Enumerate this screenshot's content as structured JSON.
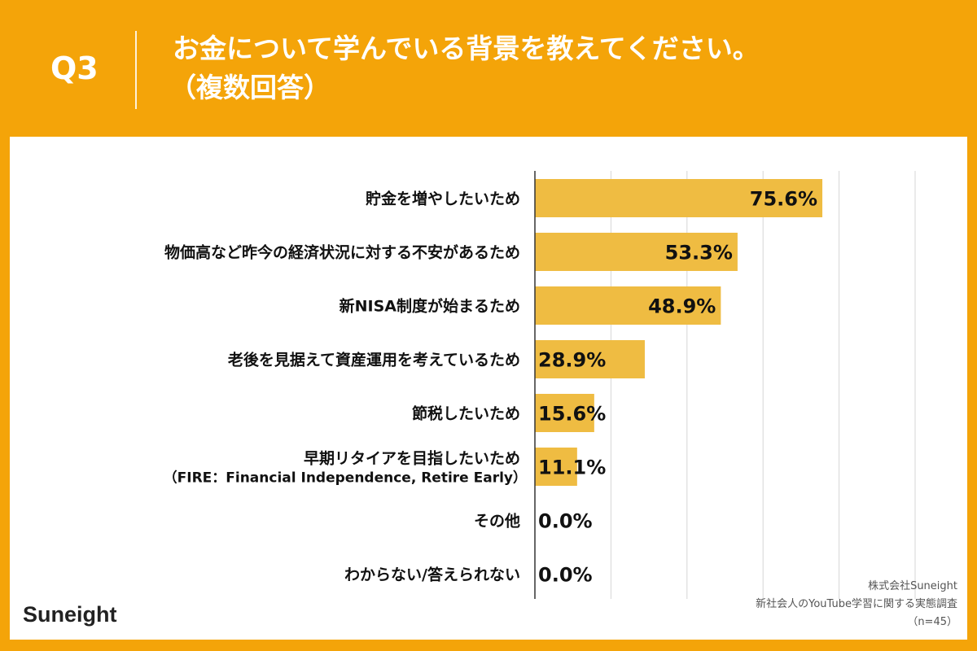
{
  "header": {
    "question_number": "Q3",
    "title_line1": "お金について学んでいる背景を教えてください。",
    "title_line2": "（複数回答）"
  },
  "brand": {
    "logo_text": "Suneight"
  },
  "footer": {
    "company": "株式会社Suneight",
    "survey": "新社会人のYouTube学習に関する実態調査",
    "sample": "（n=45）"
  },
  "colors": {
    "background": "#F4A409",
    "bar": "#EFBC42",
    "text": "#111111"
  },
  "chart_data": {
    "type": "bar",
    "orientation": "horizontal",
    "title": "",
    "xlabel": "",
    "ylabel": "",
    "xlim": [
      0,
      100
    ],
    "grid": true,
    "categories": [
      [
        "貯金を増やしたいため"
      ],
      [
        "物価高など昨今の経済状況に対する不安があるため"
      ],
      [
        "新NISA制度が始まるため"
      ],
      [
        "老後を見据えて資産運用を考えているため"
      ],
      [
        "節税したいため"
      ],
      [
        "早期リタイアを目指したいため",
        "（FIRE：Financial Independence, Retire Early）"
      ],
      [
        "その他"
      ],
      [
        "わからない/答えられない"
      ]
    ],
    "values": [
      75.6,
      53.3,
      48.9,
      28.9,
      15.6,
      11.1,
      0.0,
      0.0
    ],
    "value_labels": [
      "75.6%",
      "53.3%",
      "48.9%",
      "28.9%",
      "15.6%",
      "11.1%",
      "0.0%",
      "0.0%"
    ]
  }
}
